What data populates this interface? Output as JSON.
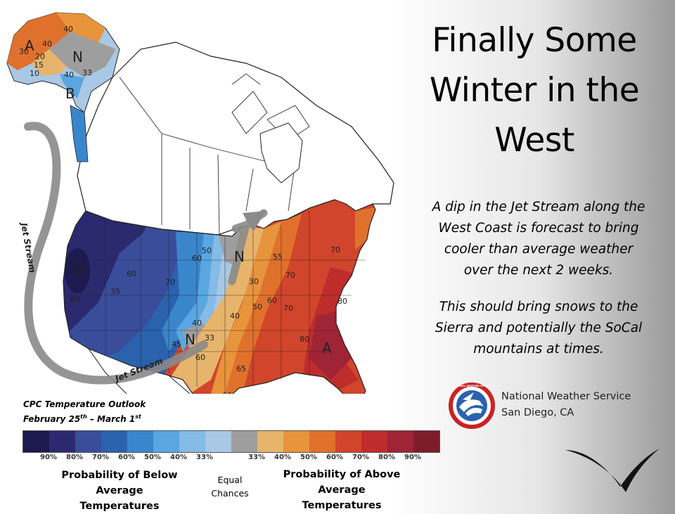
{
  "title_lines": [
    "Finally Some",
    "Winter in the",
    "West"
  ],
  "description_1": [
    "A dip in the Jet Stream along the",
    "West Coast is forecast to bring",
    "cooler than average weather",
    "over the next 2 weeks."
  ],
  "description_2": [
    "This should bring snows to the",
    "Sierra and potentially the SoCal",
    "mountains at times."
  ],
  "org": {
    "name": "National Weather Service",
    "location": "San Diego, CA",
    "logo_text": "NATIONAL WEATHER SERVICE"
  },
  "outlook": {
    "label": "CPC Temperature Outlook",
    "dates_prefix": "February 25",
    "dates_sup1": "th",
    "dates_mid": " – March 1",
    "dates_sup2": "st"
  },
  "legend": {
    "swatch_colors": [
      "#1c1a4e",
      "#2b2a6e",
      "#3a4d9b",
      "#2a62ad",
      "#3a86cc",
      "#5aa6e0",
      "#85bbe6",
      "#a9c8e5",
      "#9e9e9e",
      "#e7b46b",
      "#e8943c",
      "#e0712c",
      "#d0452b",
      "#bf2c2c",
      "#9e2436",
      "#7d1d2b"
    ],
    "ticks": [
      "90%",
      "80%",
      "70%",
      "60%",
      "50%",
      "40%",
      "33%",
      "33%",
      "40%",
      "50%",
      "60%",
      "70%",
      "80%",
      "90%"
    ],
    "below_label": [
      "Probability of Below Average",
      "Temperatures"
    ],
    "equal_label": [
      "Equal",
      "Chances"
    ],
    "above_label": [
      "Probability of Above Average",
      "Temperatures"
    ]
  },
  "map_labels": {
    "jet_stream_1": "Jet Stream",
    "jet_stream_2": "Jet Stream",
    "letters": [
      "A",
      "N",
      "B",
      "B",
      "N",
      "N",
      "A"
    ],
    "contours": [
      "30",
      "40",
      "40",
      "33",
      "20",
      "15",
      "10",
      "40",
      "80",
      "35",
      "60",
      "50",
      "70",
      "60",
      "80",
      "70",
      "40",
      "50",
      "60",
      "70",
      "80",
      "30",
      "55",
      "33",
      "45",
      "40",
      "65",
      "60",
      "70",
      "60"
    ]
  }
}
